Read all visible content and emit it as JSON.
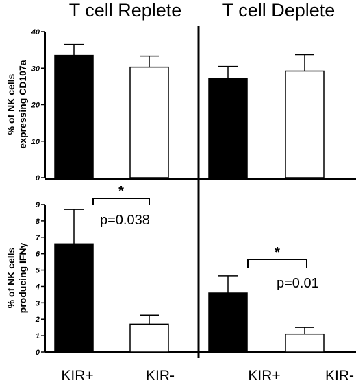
{
  "panel_titles": [
    "T cell Replete",
    "T cell Deplete"
  ],
  "row_labels": [
    [
      "% of NK cells",
      "expressing  CD107a"
    ],
    [
      "% of NK cells",
      "producing IFNγ"
    ]
  ],
  "x_categories": [
    "KIR+",
    "KIR-"
  ],
  "colors": {
    "kir_pos": "#000000",
    "kir_neg": "#ffffff",
    "stroke": "#000000"
  },
  "chart_data": [
    {
      "type": "bar",
      "panel": "top-left",
      "title": "T cell Replete",
      "ylabel": "% of NK cells expressing CD107a",
      "categories": [
        "KIR+",
        "KIR-"
      ],
      "values": [
        33.5,
        30.3
      ],
      "errors": [
        3.0,
        3.0
      ],
      "ylim": [
        0,
        40
      ],
      "yticks": [
        0,
        10,
        20,
        30,
        40
      ]
    },
    {
      "type": "bar",
      "panel": "top-right",
      "title": "T cell Deplete",
      "categories": [
        "KIR+",
        "KIR-"
      ],
      "values": [
        27.2,
        29.2
      ],
      "errors": [
        3.3,
        4.5
      ],
      "ylim": [
        0,
        40
      ]
    },
    {
      "type": "bar",
      "panel": "bottom-left",
      "ylabel": "% of NK cells producing IFNγ",
      "categories": [
        "KIR+",
        "KIR-"
      ],
      "values": [
        6.6,
        1.7
      ],
      "errors": [
        2.1,
        0.55
      ],
      "ylim": [
        0,
        9
      ],
      "yticks": [
        0,
        1,
        2,
        3,
        4,
        5,
        6,
        7,
        8,
        9
      ],
      "annotations": {
        "star": "*",
        "pvalue": "p=0.038"
      }
    },
    {
      "type": "bar",
      "panel": "bottom-right",
      "categories": [
        "KIR+",
        "KIR-"
      ],
      "values": [
        3.6,
        1.1
      ],
      "errors": [
        1.05,
        0.4
      ],
      "ylim": [
        0,
        9
      ],
      "annotations": {
        "star": "*",
        "pvalue": "p=0.01"
      }
    }
  ]
}
